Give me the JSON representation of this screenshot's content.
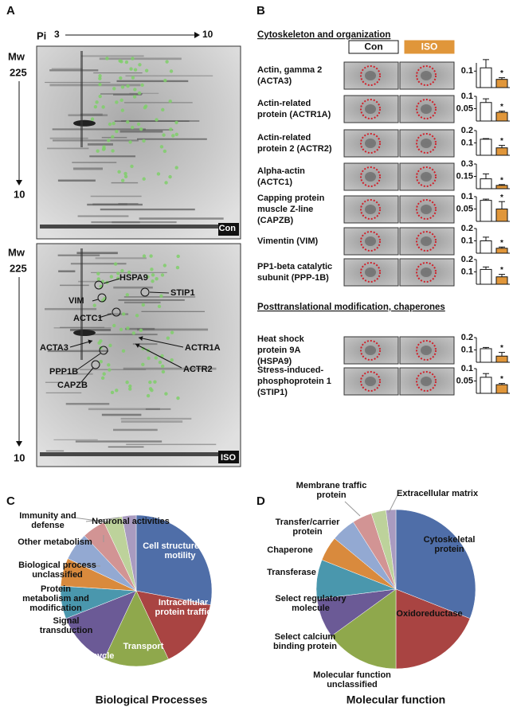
{
  "panel_labels": [
    "A",
    "B",
    "C",
    "D"
  ],
  "pi": {
    "label": "Pi",
    "start": 3,
    "end": 10
  },
  "gels": [
    {
      "mw_label": "Mw",
      "mw_top": 225,
      "mw_bottom": 10,
      "condition": "Con"
    },
    {
      "mw_label": "Mw",
      "mw_top": 225,
      "mw_bottom": 10,
      "condition": "ISO",
      "spots": [
        "HSPA9",
        "VIM",
        "STIP1",
        "ACTC1",
        "ACTA3",
        "ACTR1A",
        "ACTR2",
        "PPP1B",
        "CAPZB"
      ]
    }
  ],
  "panel_b": {
    "sections": [
      "Cytoskeleton and organization",
      "Posttranslational modification, chaperones"
    ],
    "columns": [
      "Con",
      "ISO"
    ]
  },
  "chart_data": [
    {
      "type": "bar",
      "title": [
        "Actin, gamma 2",
        "(ACTA3)"
      ],
      "values": [
        0.12,
        0.05
      ],
      "errors": [
        0.05,
        0.01
      ],
      "colors": [
        "#ffffff",
        "#e0963a"
      ],
      "ylim": [
        0,
        0.15
      ],
      "yticks": [
        0.1
      ],
      "annotation": "*"
    },
    {
      "type": "bar",
      "title": [
        "Actin-related",
        "protein (ACTR1A)"
      ],
      "values": [
        0.075,
        0.035
      ],
      "errors": [
        0.015,
        0.005
      ],
      "colors": [
        "#ffffff",
        "#e0963a"
      ],
      "ylim": [
        0,
        0.1
      ],
      "yticks": [
        0.05,
        0.1
      ],
      "annotation": "*"
    },
    {
      "type": "bar",
      "title": [
        "Actin-related",
        "protein 2 (ACTR2)"
      ],
      "values": [
        0.13,
        0.06
      ],
      "errors": [
        0.005,
        0.02
      ],
      "colors": [
        "#ffffff",
        "#e0963a"
      ],
      "ylim": [
        0,
        0.2
      ],
      "yticks": [
        0.1,
        0.2
      ],
      "annotation": "*"
    },
    {
      "type": "bar",
      "title": [
        "Alpha-actin",
        "(ACTC1)"
      ],
      "values": [
        0.12,
        0.04
      ],
      "errors": [
        0.06,
        0.01
      ],
      "colors": [
        "#ffffff",
        "#e0963a"
      ],
      "ylim": [
        0,
        0.3
      ],
      "yticks": [
        0.15,
        0.3
      ],
      "annotation": "*"
    },
    {
      "type": "bar",
      "title": [
        "Capping protein",
        "muscle Z-line",
        "(CAPZB)"
      ],
      "values": [
        0.085,
        0.05
      ],
      "errors": [
        0.005,
        0.03
      ],
      "colors": [
        "#ffffff",
        "#e0963a"
      ],
      "ylim": [
        0,
        0.1
      ],
      "yticks": [
        0.05,
        0.1
      ],
      "annotation": "*"
    },
    {
      "type": "bar",
      "title": [
        " Vimentin (VIM)"
      ],
      "values": [
        0.1,
        0.04
      ],
      "errors": [
        0.03,
        0.01
      ],
      "colors": [
        "#ffffff",
        "#e0963a"
      ],
      "ylim": [
        0,
        0.2
      ],
      "yticks": [
        0.1,
        0.2
      ],
      "annotation": "*"
    },
    {
      "type": "bar",
      "title": [
        "PP1-beta catalytic",
        "subunit (PPP-1B)"
      ],
      "values": [
        0.12,
        0.06
      ],
      "errors": [
        0.02,
        0.02
      ],
      "colors": [
        "#ffffff",
        "#e0963a"
      ],
      "ylim": [
        0,
        0.2
      ],
      "yticks": [
        0.1,
        0.2
      ],
      "annotation": "*"
    },
    {
      "type": "bar",
      "title": [
        "Heat shock",
        "protein 9A",
        "(HSPA9)"
      ],
      "values": [
        0.11,
        0.05
      ],
      "errors": [
        0.01,
        0.03
      ],
      "colors": [
        "#ffffff",
        "#e0963a"
      ],
      "ylim": [
        0,
        0.2
      ],
      "yticks": [
        0.1,
        0.2
      ],
      "annotation": "*"
    },
    {
      "type": "bar",
      "title": [
        "Stress-induced-",
        "phosphoprotein 1",
        "(STIP1)"
      ],
      "values": [
        0.065,
        0.035
      ],
      "errors": [
        0.015,
        0.005
      ],
      "colors": [
        "#ffffff",
        "#e0963a"
      ],
      "ylim": [
        0,
        0.1
      ],
      "yticks": [
        0.05,
        0.1
      ],
      "annotation": "*"
    },
    {
      "type": "pie",
      "title": "Biological Processes",
      "categories": [
        "Cell structure and motility",
        "Intracellular protein traffic",
        "Transport",
        "Cell cycle",
        "Signal transduction",
        "Protein metabolism and modification",
        "Biological process unclassified",
        "Other metabolism",
        "Immunity and defense",
        "Neuronal activities"
      ],
      "values": [
        28,
        15,
        14,
        12,
        7,
        6,
        6,
        5,
        4,
        3
      ],
      "colors": [
        "#4f6ea8",
        "#a94442",
        "#8fa84c",
        "#6b5a96",
        "#4a97ad",
        "#d98a3d",
        "#93a9d2",
        "#d29494",
        "#bdd29b",
        "#a99bc0"
      ]
    },
    {
      "type": "pie",
      "title": "Molecular function",
      "categories": [
        "Cytoskeletal protein",
        "Oxidoreductase",
        "Molecular function unclassified",
        "Select calcium binding protein",
        "Select regulatory molecule",
        "Transferase",
        "Chaperone",
        "Transfer/carrier protein",
        "Membrane traffic protein",
        "Extracellular matrix"
      ],
      "values": [
        31,
        19,
        15,
        8,
        8,
        5,
        5,
        4,
        3,
        2
      ],
      "colors": [
        "#4f6ea8",
        "#a94442",
        "#8fa84c",
        "#6b5a96",
        "#4a97ad",
        "#d98a3d",
        "#93a9d2",
        "#d29494",
        "#bdd29b",
        "#a99bc0"
      ]
    }
  ]
}
